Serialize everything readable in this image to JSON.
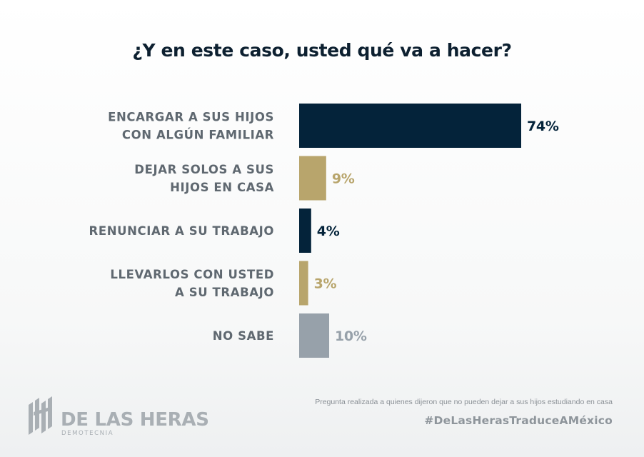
{
  "chart_data": {
    "type": "bar",
    "orientation": "horizontal",
    "title": "¿Y en este caso, usted qué va a hacer?",
    "categories": [
      [
        "ENCARGAR A SUS HIJOS",
        "CON ALGÚN FAMILIAR"
      ],
      [
        "DEJAR SOLOS A SUS",
        "HIJOS EN CASA"
      ],
      [
        "RENUNCIAR A SU TRABAJO"
      ],
      [
        "LLEVARLOS CON USTED",
        "A SU TRABAJO"
      ],
      [
        "NO SABE"
      ]
    ],
    "values": [
      74,
      9,
      4,
      3,
      10
    ],
    "value_labels": [
      "74%",
      "9%",
      "4%",
      "3%",
      "10%"
    ],
    "bar_colors": [
      "#04233a",
      "#b8a56c",
      "#04233a",
      "#b8a56c",
      "#97a1aa"
    ],
    "value_label_colors": [
      "#04233a",
      "#b8a56c",
      "#04233a",
      "#b8a56c",
      "#97a1aa"
    ],
    "xlim": [
      0,
      100
    ],
    "grid": false,
    "legend": "none"
  },
  "footer": {
    "note": "Pregunta realizada a quienes dijeron que no pueden dejar a sus hijos estudiando en casa",
    "hashtag": "#DeLasHerasTraduceAMéxico"
  },
  "brand": {
    "name": "DE LAS HERAS",
    "subtitle": "DEMOTECNIA",
    "logo_icon": "de-las-heras-logo-icon",
    "color": "#a9afb4"
  }
}
